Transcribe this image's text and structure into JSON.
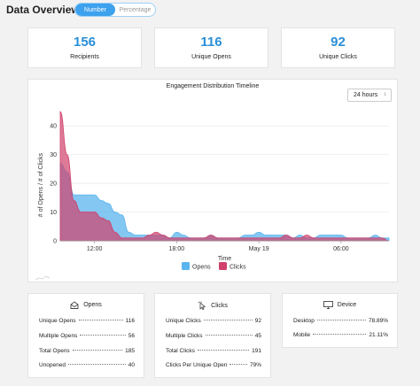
{
  "header": {
    "title": "Data Overview",
    "toggle": {
      "options": [
        "Number",
        "Percentage"
      ],
      "selected": "Number"
    }
  },
  "stats": [
    {
      "value": "156",
      "label": "Recipients"
    },
    {
      "value": "116",
      "label": "Unique Opens"
    },
    {
      "value": "92",
      "label": "Unique Clicks"
    }
  ],
  "timeline": {
    "range_select": "24 hours",
    "colors": {
      "opens": "#5ab4ee",
      "clicks": "#d0416b"
    }
  },
  "chart_data": {
    "type": "area",
    "title": "Engagement Distribution Timeline",
    "xlabel": "Time",
    "ylabel": "# of Opens / # of Clicks",
    "ylim": [
      0,
      45
    ],
    "yticks": [
      0,
      10,
      20,
      30,
      40
    ],
    "xlim": [
      9.5,
      33.5
    ],
    "xticks": [
      {
        "at": 12,
        "label": "12:00"
      },
      {
        "at": 18,
        "label": "18:00"
      },
      {
        "at": 24,
        "label": "May 19"
      },
      {
        "at": 30,
        "label": "06:00"
      }
    ],
    "x": [
      9.5,
      10,
      10.5,
      11,
      11.5,
      12,
      12.5,
      13,
      13.5,
      14,
      14.5,
      15,
      15.5,
      16,
      16.5,
      17,
      17.5,
      18,
      18.5,
      19,
      19.5,
      20,
      20.5,
      21,
      21.5,
      22,
      22.5,
      23,
      23.5,
      24,
      24.5,
      25,
      25.5,
      26,
      26.5,
      27,
      27.5,
      28,
      28.5,
      29,
      29.5,
      30,
      30.5,
      31,
      31.5,
      32,
      32.5,
      33,
      33.5
    ],
    "series": [
      {
        "name": "Opens",
        "values": [
          27,
          24,
          16,
          16,
          16,
          16,
          14,
          13,
          10,
          9,
          3,
          2,
          2,
          2,
          2,
          2,
          1,
          3,
          2,
          1,
          1,
          1,
          2,
          1,
          1,
          1,
          1,
          2,
          2,
          3,
          2,
          2,
          2,
          2,
          1,
          2,
          1,
          1,
          2,
          2,
          2,
          2,
          1,
          1,
          1,
          1,
          2,
          1,
          1
        ]
      },
      {
        "name": "Clicks",
        "values": [
          45,
          30,
          14,
          10,
          10,
          10,
          8,
          7,
          3,
          1,
          1,
          1,
          1,
          2,
          3,
          2,
          1,
          1,
          1,
          1,
          1,
          1,
          2,
          1,
          1,
          1,
          1,
          1,
          1,
          1,
          1,
          1,
          1,
          2,
          1,
          1,
          2,
          1,
          1,
          1,
          1,
          1,
          1,
          1,
          1,
          1,
          1,
          1,
          0
        ]
      }
    ],
    "legend": [
      "Opens",
      "Clicks"
    ],
    "legend_position": "bottom"
  },
  "details": {
    "opens": {
      "title": "Opens",
      "rows": [
        {
          "label": "Unique Opens",
          "value": "116"
        },
        {
          "label": "Multiple Opens",
          "value": "56"
        },
        {
          "label": "Total Opens",
          "value": "185"
        },
        {
          "label": "Unopened",
          "value": "40"
        }
      ]
    },
    "clicks": {
      "title": "Clicks",
      "rows": [
        {
          "label": "Unique Clicks",
          "value": "92"
        },
        {
          "label": "Multiple Clicks",
          "value": "45"
        },
        {
          "label": "Total Clicks",
          "value": "191"
        },
        {
          "label": "Clicks Per Unique Open",
          "value": "79%"
        }
      ]
    },
    "device": {
      "title": "Device",
      "rows": [
        {
          "label": "Desktop",
          "value": "78.89%"
        },
        {
          "label": "Mobile",
          "value": "21.11%"
        }
      ]
    }
  }
}
